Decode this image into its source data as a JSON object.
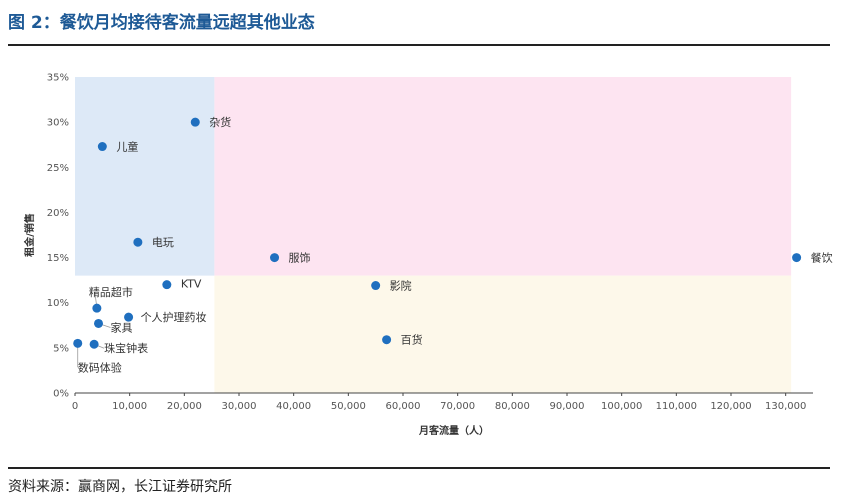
{
  "figure": {
    "title": "图 2：餐饮月均接待客流量远超其他业态",
    "source": "资料来源：赢商网，长江证券研究所"
  },
  "chart_data": {
    "type": "scatter",
    "xlabel": "月客流量（人）",
    "ylabel": "租金/销售",
    "xlim": [
      0,
      135000
    ],
    "ylim": [
      0,
      0.35
    ],
    "grid": false,
    "xticks": [
      "0",
      "10,000",
      "20,000",
      "30,000",
      "40,000",
      "50,000",
      "60,000",
      "70,000",
      "80,000",
      "90,000",
      "100,000",
      "110,000",
      "120,000",
      "130,000"
    ],
    "yticks": [
      "0%",
      "5%",
      "10%",
      "15%",
      "20%",
      "25%",
      "30%",
      "35%"
    ],
    "marker_color": "#1f6fbf",
    "regions": [
      {
        "name": "low-traffic-high-ratio",
        "x": [
          0,
          25500
        ],
        "y": [
          0.13,
          0.35
        ],
        "color": "#dde9f7"
      },
      {
        "name": "high-traffic-high-ratio",
        "x": [
          25500,
          131000
        ],
        "y": [
          0.13,
          0.35
        ],
        "color": "#fde4f1"
      },
      {
        "name": "high-traffic-low-ratio",
        "x": [
          25500,
          131000
        ],
        "y": [
          0,
          0.13
        ],
        "color": "#fdf8ea"
      }
    ],
    "points": [
      {
        "label": "杂货",
        "x": 22000,
        "y": 0.3
      },
      {
        "label": "儿童",
        "x": 5000,
        "y": 0.273
      },
      {
        "label": "电玩",
        "x": 11500,
        "y": 0.167
      },
      {
        "label": "服饰",
        "x": 36500,
        "y": 0.15
      },
      {
        "label": "餐饮",
        "x": 132000,
        "y": 0.15
      },
      {
        "label": "KTV",
        "x": 16800,
        "y": 0.12
      },
      {
        "label": "影院",
        "x": 55000,
        "y": 0.119
      },
      {
        "label": "精品超市",
        "x": 4000,
        "y": 0.094
      },
      {
        "label": "个人护理药妆",
        "x": 9800,
        "y": 0.084
      },
      {
        "label": "家具",
        "x": 4300,
        "y": 0.077
      },
      {
        "label": "百货",
        "x": 57000,
        "y": 0.059
      },
      {
        "label": "珠宝钟表",
        "x": 3500,
        "y": 0.054
      },
      {
        "label": "数码体验",
        "x": 500,
        "y": 0.055
      }
    ]
  }
}
